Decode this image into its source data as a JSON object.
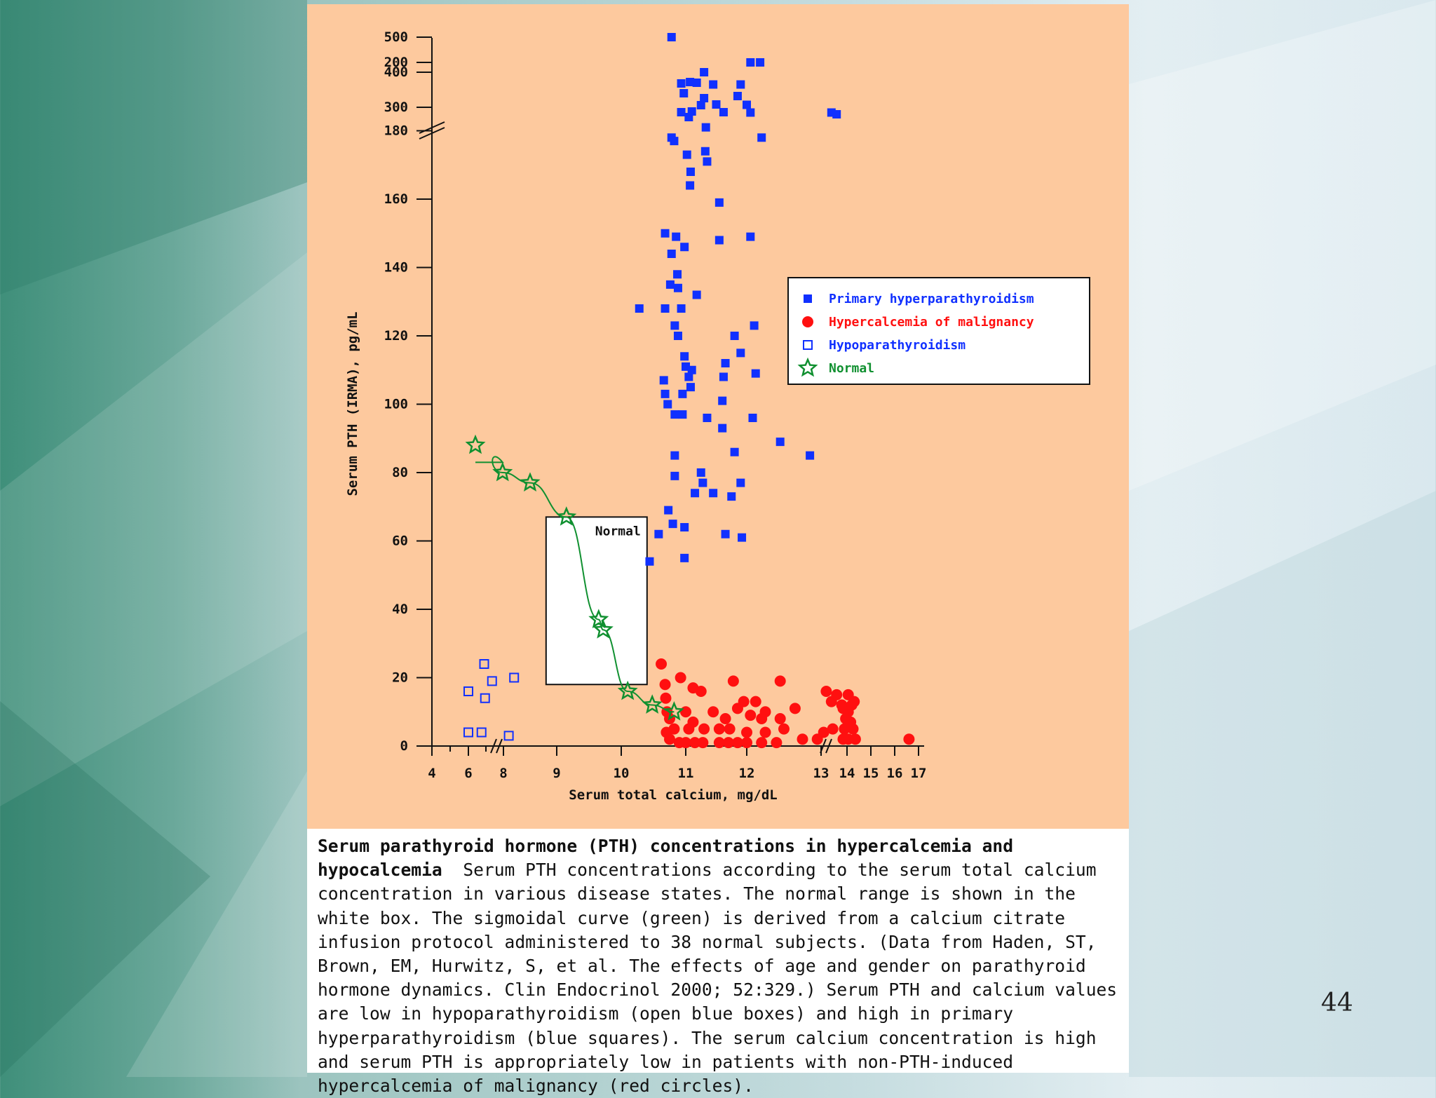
{
  "slide": {
    "number": "44"
  },
  "chart_data": {
    "type": "scatter",
    "ylabel": "Serum PTH (IRMA), pg/mL",
    "xlabel": "Serum total calcium, mg/dL",
    "x_ticks": [
      "4",
      "6",
      "8",
      "9",
      "10",
      "11",
      "12",
      "13",
      "14",
      "15",
      "16",
      "17"
    ],
    "y_ticks": [
      "0",
      "20",
      "40",
      "60",
      "80",
      "100",
      "120",
      "140",
      "160",
      "180",
      "200",
      "300",
      "400",
      "500"
    ],
    "legend": {
      "placement": "right",
      "entries": [
        {
          "label": "Primary hyperparathyroidism",
          "marker": "filled-square",
          "color": "#1030ff"
        },
        {
          "label": "Hypercalcemia of malignancy",
          "marker": "filled-circle",
          "color": "#ff1010"
        },
        {
          "label": "Hypoparathyroidism",
          "marker": "open-square",
          "color": "#1030ff"
        },
        {
          "label": "Normal",
          "marker": "star",
          "color": "#109030"
        }
      ]
    },
    "normal_box": {
      "label": "Normal",
      "x_range": [
        8.8,
        10.4
      ],
      "y_range": [
        18,
        67
      ]
    },
    "series": [
      {
        "name": "Primary hyperparathyroidism",
        "points": [
          [
            10.78,
            500
          ],
          [
            11.3,
            400
          ],
          [
            10.93,
            368
          ],
          [
            11.07,
            372
          ],
          [
            11.18,
            370
          ],
          [
            11.45,
            365
          ],
          [
            11.9,
            365
          ],
          [
            11.85,
            332
          ],
          [
            10.97,
            340
          ],
          [
            11.3,
            326
          ],
          [
            11.25,
            306
          ],
          [
            11.5,
            308
          ],
          [
            12.0,
            307
          ],
          [
            10.93,
            286
          ],
          [
            11.1,
            288
          ],
          [
            11.62,
            286
          ],
          [
            12.05,
            285
          ],
          [
            13.4,
            285
          ],
          [
            13.6,
            280
          ],
          [
            11.05,
            184
          ],
          [
            11.33,
            181
          ],
          [
            12.05,
            200
          ],
          [
            12.18,
            200
          ],
          [
            10.78,
            178
          ],
          [
            10.82,
            177
          ],
          [
            12.2,
            178
          ],
          [
            11.32,
            174
          ],
          [
            11.35,
            171
          ],
          [
            11.02,
            173
          ],
          [
            11.08,
            168
          ],
          [
            11.07,
            164
          ],
          [
            11.55,
            159
          ],
          [
            10.68,
            150
          ],
          [
            10.85,
            149
          ],
          [
            10.98,
            146
          ],
          [
            11.55,
            148
          ],
          [
            12.05,
            149
          ],
          [
            10.78,
            144
          ],
          [
            10.87,
            138
          ],
          [
            10.76,
            135
          ],
          [
            10.88,
            134
          ],
          [
            11.18,
            132
          ],
          [
            10.28,
            128
          ],
          [
            10.68,
            128
          ],
          [
            10.83,
            123
          ],
          [
            10.93,
            128
          ],
          [
            12.1,
            123
          ],
          [
            11.8,
            120
          ],
          [
            10.88,
            120
          ],
          [
            11.9,
            115
          ],
          [
            10.98,
            114
          ],
          [
            11.0,
            111
          ],
          [
            11.65,
            112
          ],
          [
            11.05,
            108
          ],
          [
            11.1,
            110
          ],
          [
            11.62,
            108
          ],
          [
            12.12,
            109
          ],
          [
            10.66,
            107
          ],
          [
            11.08,
            105
          ],
          [
            10.95,
            103
          ],
          [
            10.68,
            103
          ],
          [
            10.72,
            100
          ],
          [
            10.83,
            97
          ],
          [
            10.95,
            97
          ],
          [
            11.6,
            101
          ],
          [
            11.35,
            96
          ],
          [
            11.6,
            93
          ],
          [
            12.08,
            96
          ],
          [
            12.45,
            89
          ],
          [
            12.85,
            85
          ],
          [
            10.83,
            85
          ],
          [
            11.8,
            86
          ],
          [
            11.25,
            80
          ],
          [
            10.83,
            79
          ],
          [
            11.28,
            77
          ],
          [
            11.9,
            77
          ],
          [
            11.15,
            74
          ],
          [
            11.45,
            74
          ],
          [
            11.75,
            73
          ],
          [
            10.73,
            69
          ],
          [
            10.58,
            62
          ],
          [
            10.8,
            65
          ],
          [
            10.98,
            64
          ],
          [
            11.65,
            62
          ],
          [
            11.92,
            61
          ],
          [
            10.44,
            54
          ],
          [
            10.98,
            55
          ]
        ]
      },
      {
        "name": "Hypercalcemia of malignancy",
        "points": [
          [
            10.62,
            24
          ],
          [
            10.92,
            20
          ],
          [
            10.68,
            18
          ],
          [
            11.12,
            17
          ],
          [
            11.25,
            16
          ],
          [
            11.78,
            19
          ],
          [
            12.45,
            19
          ],
          [
            13.2,
            16
          ],
          [
            13.6,
            15
          ],
          [
            14.05,
            15
          ],
          [
            10.69,
            14
          ],
          [
            11.95,
            13
          ],
          [
            12.12,
            13
          ],
          [
            13.4,
            13
          ],
          [
            14.3,
            13
          ],
          [
            13.8,
            12
          ],
          [
            14.2,
            12
          ],
          [
            10.71,
            10
          ],
          [
            11.0,
            10
          ],
          [
            11.45,
            10
          ],
          [
            11.85,
            11
          ],
          [
            12.25,
            10
          ],
          [
            12.65,
            11
          ],
          [
            13.85,
            11
          ],
          [
            14.05,
            10
          ],
          [
            10.75,
            8
          ],
          [
            11.12,
            7
          ],
          [
            11.65,
            8
          ],
          [
            12.05,
            9
          ],
          [
            12.2,
            8
          ],
          [
            12.45,
            8
          ],
          [
            13.95,
            8
          ],
          [
            14.15,
            7
          ],
          [
            10.7,
            4
          ],
          [
            10.82,
            5
          ],
          [
            11.05,
            5
          ],
          [
            11.3,
            5
          ],
          [
            11.55,
            5
          ],
          [
            11.72,
            5
          ],
          [
            12.0,
            4
          ],
          [
            12.25,
            4
          ],
          [
            12.5,
            5
          ],
          [
            13.1,
            4
          ],
          [
            13.45,
            5
          ],
          [
            13.9,
            5
          ],
          [
            14.25,
            5
          ],
          [
            10.75,
            2
          ],
          [
            10.9,
            1
          ],
          [
            11.0,
            1
          ],
          [
            11.15,
            1
          ],
          [
            11.28,
            1
          ],
          [
            11.55,
            1
          ],
          [
            11.7,
            1
          ],
          [
            11.85,
            1
          ],
          [
            12.0,
            1
          ],
          [
            12.2,
            1
          ],
          [
            12.4,
            1
          ],
          [
            12.75,
            2
          ],
          [
            12.95,
            2
          ],
          [
            13.85,
            2
          ],
          [
            14.05,
            2
          ],
          [
            14.35,
            2
          ],
          [
            16.6,
            2
          ]
        ]
      },
      {
        "name": "Hypoparathyroidism",
        "points": [
          [
            6.0,
            16
          ],
          [
            6.9,
            24
          ],
          [
            6.95,
            14
          ],
          [
            7.35,
            19
          ],
          [
            8.2,
            20
          ],
          [
            6.0,
            4
          ],
          [
            6.75,
            4
          ],
          [
            8.1,
            3
          ]
        ]
      },
      {
        "name": "Normal",
        "curve": true,
        "points": [
          [
            6.4,
            88
          ],
          [
            7.95,
            80
          ],
          [
            8.5,
            77
          ],
          [
            9.15,
            67
          ],
          [
            9.65,
            37
          ],
          [
            9.72,
            34
          ],
          [
            10.1,
            16
          ],
          [
            10.48,
            12
          ],
          [
            10.82,
            10
          ]
        ]
      }
    ],
    "break_marks": {
      "y": "between 200 and 300",
      "x": [
        "between 6 and 8",
        "between 13 and 14"
      ]
    }
  },
  "caption": {
    "title": "Serum parathyroid hormone (PTH) concentrations in hypercalcemia and hypocalcemia",
    "body": "Serum PTH concentrations according to the serum total calcium concentration in various disease states. The normal range is shown in the white box. The sigmoidal curve (green) is derived from a calcium citrate infusion protocol administered to 38 normal subjects. (Data from Haden, ST, Brown, EM, Hurwitz, S, et al. The effects of age and gender on parathyroid hormone dynamics. Clin Endocrinol 2000; 52:329.) Serum PTH and calcium values are low in hypoparathyroidism (open blue boxes) and high in primary hyperparathyroidism (blue squares). The serum calcium concentration is high and serum PTH is appropriately low in patients with non-PTH-induced hypercalcemia of malignancy (red circles)."
  }
}
